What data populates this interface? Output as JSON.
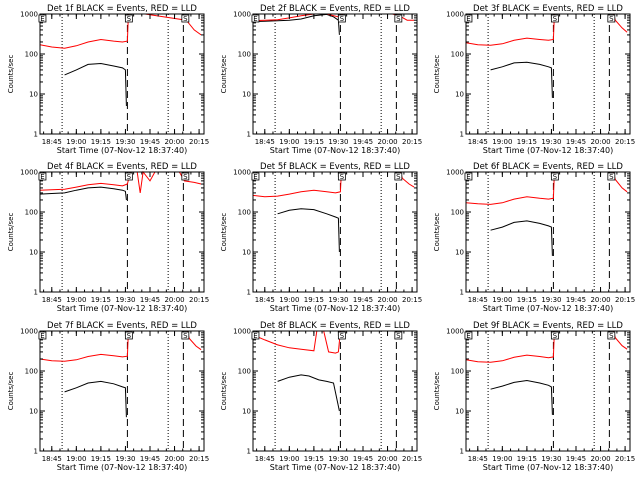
{
  "chart_data": {
    "type": "line",
    "shared": {
      "xlabel": "Start Time (07-Nov-12 18:37:40)",
      "ylabel": "Counts/sec",
      "xlim": [
        18.63,
        20.3
      ],
      "ylim": [
        1,
        1000
      ],
      "y_scale": "log",
      "x_tick_values": [
        18.75,
        19.0,
        19.25,
        19.5,
        19.75,
        20.0,
        20.25
      ],
      "x_tick_labels": [
        "18:45",
        "19:00",
        "19:15",
        "19:30",
        "19:45",
        "20:00",
        "20:15"
      ],
      "y_tick_values": [
        1,
        10,
        100,
        1000
      ],
      "y_tick_labels": [
        "1",
        "10",
        "100",
        "1000"
      ],
      "dotted_lines": [
        18.855,
        19.935
      ],
      "dashed_lines": [
        19.52,
        20.09
      ],
      "markers": [
        {
          "x": 18.655,
          "label": "E"
        },
        {
          "x": 19.535,
          "label": "S"
        },
        {
          "x": 20.11,
          "label": "S"
        }
      ],
      "colors": {
        "events": "#000000",
        "lld": "#ff0000"
      }
    },
    "panels": [
      {
        "title": "Det 1f BLACK = Events, RED = LLD",
        "events": [
          [
            18.88,
            30
          ],
          [
            19.0,
            40
          ],
          [
            19.12,
            55
          ],
          [
            19.25,
            58
          ],
          [
            19.38,
            50
          ],
          [
            19.47,
            45
          ],
          [
            19.5,
            40
          ],
          [
            19.51,
            5
          ]
        ],
        "lld": [
          [
            18.63,
            170
          ],
          [
            18.75,
            150
          ],
          [
            18.88,
            140
          ],
          [
            19.0,
            160
          ],
          [
            19.12,
            200
          ],
          [
            19.25,
            230
          ],
          [
            19.38,
            210
          ],
          [
            19.47,
            200
          ],
          [
            19.52,
            210
          ],
          [
            19.53,
            1000
          ],
          [
            19.6,
            1000
          ],
          [
            19.7,
            1000
          ],
          [
            20.12,
            700
          ],
          [
            20.2,
            400
          ],
          [
            20.27,
            300
          ]
        ]
      },
      {
        "title": "Det 2f BLACK = Events, RED = LLD",
        "events": [
          [
            18.63,
            650
          ],
          [
            18.75,
            660
          ],
          [
            18.88,
            680
          ],
          [
            19.0,
            700
          ],
          [
            19.12,
            750
          ],
          [
            19.25,
            900
          ],
          [
            19.38,
            980
          ],
          [
            19.45,
            850
          ],
          [
            19.5,
            700
          ],
          [
            19.51,
            300
          ]
        ],
        "lld": [
          [
            18.63,
            680
          ],
          [
            18.75,
            700
          ],
          [
            18.88,
            720
          ],
          [
            19.0,
            800
          ],
          [
            19.12,
            900
          ],
          [
            19.25,
            1000
          ],
          [
            19.38,
            1000
          ],
          [
            19.5,
            850
          ],
          [
            19.52,
            900
          ],
          [
            19.55,
            1000
          ],
          [
            20.05,
            1000
          ],
          [
            20.12,
            900
          ],
          [
            20.2,
            700
          ],
          [
            20.27,
            700
          ]
        ]
      },
      {
        "title": "Det 3f BLACK = Events, RED = LLD",
        "events": [
          [
            18.88,
            40
          ],
          [
            19.0,
            48
          ],
          [
            19.12,
            60
          ],
          [
            19.25,
            62
          ],
          [
            19.38,
            55
          ],
          [
            19.47,
            48
          ],
          [
            19.5,
            45
          ],
          [
            19.51,
            8
          ]
        ],
        "lld": [
          [
            18.63,
            190
          ],
          [
            18.75,
            170
          ],
          [
            18.88,
            165
          ],
          [
            19.0,
            180
          ],
          [
            19.12,
            220
          ],
          [
            19.25,
            250
          ],
          [
            19.38,
            230
          ],
          [
            19.47,
            220
          ],
          [
            19.52,
            230
          ],
          [
            19.53,
            1000
          ],
          [
            19.6,
            1000
          ],
          [
            20.13,
            1000
          ],
          [
            20.15,
            700
          ],
          [
            20.22,
            450
          ],
          [
            20.27,
            350
          ]
        ]
      },
      {
        "title": "Det 4f BLACK = Events, RED = LLD",
        "events": [
          [
            18.63,
            280
          ],
          [
            18.75,
            290
          ],
          [
            18.88,
            300
          ],
          [
            19.0,
            350
          ],
          [
            19.12,
            400
          ],
          [
            19.25,
            420
          ],
          [
            19.38,
            380
          ],
          [
            19.47,
            350
          ],
          [
            19.5,
            330
          ],
          [
            19.51,
            200
          ]
        ],
        "lld": [
          [
            18.63,
            350
          ],
          [
            18.75,
            360
          ],
          [
            18.88,
            370
          ],
          [
            19.0,
            420
          ],
          [
            19.12,
            480
          ],
          [
            19.25,
            520
          ],
          [
            19.38,
            480
          ],
          [
            19.47,
            450
          ],
          [
            19.52,
            500
          ],
          [
            19.55,
            1000
          ],
          [
            19.62,
            1000
          ],
          [
            19.65,
            300
          ],
          [
            19.68,
            1000
          ],
          [
            19.75,
            600
          ],
          [
            19.8,
            1000
          ],
          [
            20.05,
            1000
          ],
          [
            20.1,
            600
          ],
          [
            20.2,
            550
          ],
          [
            20.27,
            500
          ]
        ]
      },
      {
        "title": "Det 5f BLACK = Events, RED = LLD",
        "events": [
          [
            18.88,
            90
          ],
          [
            19.0,
            110
          ],
          [
            19.12,
            120
          ],
          [
            19.25,
            115
          ],
          [
            19.38,
            90
          ],
          [
            19.47,
            75
          ],
          [
            19.5,
            70
          ],
          [
            19.51,
            10
          ]
        ],
        "lld": [
          [
            18.63,
            260
          ],
          [
            18.75,
            240
          ],
          [
            18.88,
            250
          ],
          [
            19.0,
            280
          ],
          [
            19.12,
            320
          ],
          [
            19.25,
            350
          ],
          [
            19.38,
            320
          ],
          [
            19.47,
            300
          ],
          [
            19.52,
            320
          ],
          [
            19.53,
            1000
          ],
          [
            19.6,
            1000
          ],
          [
            20.13,
            1000
          ],
          [
            20.15,
            700
          ],
          [
            20.22,
            500
          ],
          [
            20.27,
            420
          ]
        ]
      },
      {
        "title": "Det 6f BLACK = Events, RED = LLD",
        "events": [
          [
            18.88,
            35
          ],
          [
            19.0,
            42
          ],
          [
            19.12,
            55
          ],
          [
            19.25,
            60
          ],
          [
            19.38,
            52
          ],
          [
            19.47,
            45
          ],
          [
            19.5,
            42
          ],
          [
            19.51,
            8
          ]
        ],
        "lld": [
          [
            18.63,
            170
          ],
          [
            18.75,
            160
          ],
          [
            18.88,
            155
          ],
          [
            19.0,
            170
          ],
          [
            19.12,
            210
          ],
          [
            19.25,
            240
          ],
          [
            19.38,
            220
          ],
          [
            19.47,
            210
          ],
          [
            19.52,
            220
          ],
          [
            19.53,
            1000
          ],
          [
            19.6,
            1000
          ],
          [
            20.13,
            1000
          ],
          [
            20.15,
            650
          ],
          [
            20.22,
            400
          ],
          [
            20.27,
            320
          ]
        ]
      },
      {
        "title": "Det 7f BLACK = Events, RED = LLD",
        "events": [
          [
            18.88,
            30
          ],
          [
            19.0,
            38
          ],
          [
            19.12,
            50
          ],
          [
            19.25,
            55
          ],
          [
            19.38,
            48
          ],
          [
            19.47,
            40
          ],
          [
            19.5,
            38
          ],
          [
            19.51,
            7
          ]
        ],
        "lld": [
          [
            18.63,
            200
          ],
          [
            18.75,
            180
          ],
          [
            18.88,
            175
          ],
          [
            19.0,
            190
          ],
          [
            19.12,
            230
          ],
          [
            19.25,
            260
          ],
          [
            19.38,
            240
          ],
          [
            19.47,
            225
          ],
          [
            19.52,
            235
          ],
          [
            19.53,
            1000
          ],
          [
            19.6,
            1000
          ],
          [
            20.13,
            1000
          ],
          [
            20.15,
            650
          ],
          [
            20.22,
            420
          ],
          [
            20.27,
            340
          ]
        ]
      },
      {
        "title": "Det 8f BLACK = Events, RED = LLD",
        "events": [
          [
            18.88,
            55
          ],
          [
            19.0,
            70
          ],
          [
            19.12,
            80
          ],
          [
            19.2,
            75
          ],
          [
            19.3,
            60
          ],
          [
            19.38,
            55
          ],
          [
            19.45,
            50
          ],
          [
            19.51,
            10
          ]
        ],
        "lld": [
          [
            18.63,
            800
          ],
          [
            18.75,
            600
          ],
          [
            18.88,
            450
          ],
          [
            19.0,
            380
          ],
          [
            19.12,
            350
          ],
          [
            19.25,
            320
          ],
          [
            19.28,
            1000
          ],
          [
            19.35,
            1000
          ],
          [
            19.4,
            300
          ],
          [
            19.47,
            280
          ],
          [
            19.5,
            300
          ],
          [
            19.52,
            1000
          ],
          [
            19.6,
            1000
          ]
        ]
      },
      {
        "title": "Det 9f BLACK = Events, RED = LLD",
        "events": [
          [
            18.88,
            35
          ],
          [
            19.0,
            42
          ],
          [
            19.12,
            52
          ],
          [
            19.25,
            58
          ],
          [
            19.38,
            50
          ],
          [
            19.47,
            44
          ],
          [
            19.5,
            40
          ],
          [
            19.51,
            8
          ]
        ],
        "lld": [
          [
            18.63,
            190
          ],
          [
            18.75,
            170
          ],
          [
            18.88,
            165
          ],
          [
            19.0,
            180
          ],
          [
            19.12,
            220
          ],
          [
            19.25,
            250
          ],
          [
            19.38,
            230
          ],
          [
            19.47,
            215
          ],
          [
            19.52,
            225
          ],
          [
            19.53,
            1000
          ],
          [
            19.6,
            1000
          ],
          [
            20.13,
            1000
          ],
          [
            20.15,
            680
          ],
          [
            20.22,
            430
          ],
          [
            20.27,
            350
          ]
        ]
      }
    ]
  }
}
